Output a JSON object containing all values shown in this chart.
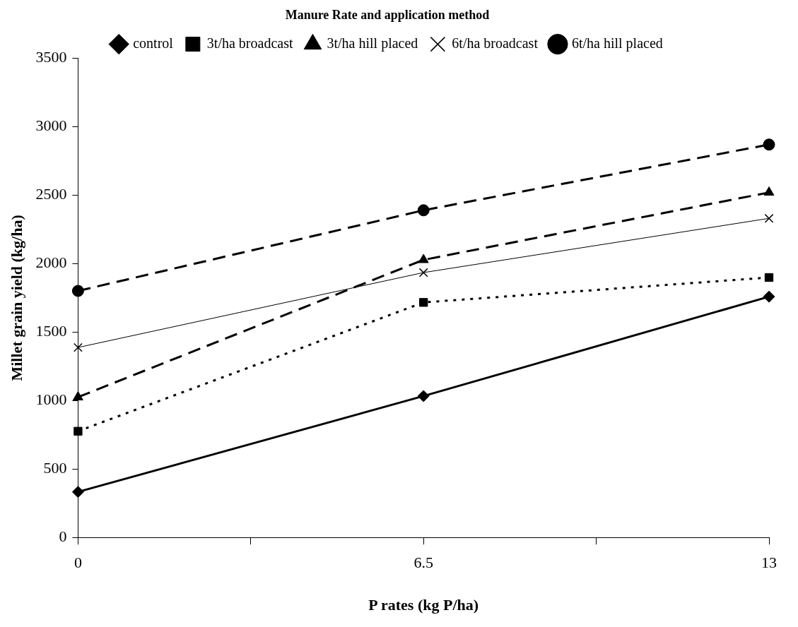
{
  "chart_data": {
    "type": "line",
    "xlabel": "P rates (kg P/ha)",
    "ylabel": "Millet grain yield (kg/ha)",
    "legend_title": "Manure Rate and application method",
    "legend": "top",
    "grid": false,
    "x": [
      0,
      6.5,
      13
    ],
    "xlim": [
      0,
      13
    ],
    "xticks": [
      0,
      {
        "value": 3.25,
        "label": null
      },
      6.5,
      {
        "value": 9.75,
        "label": null
      },
      13
    ],
    "ylim": [
      0,
      3500
    ],
    "yticks": [
      0,
      500,
      1000,
      1500,
      2000,
      2500,
      3000,
      3500
    ],
    "series": [
      {
        "name": "control",
        "color": "#000000",
        "values": [
          333,
          1033,
          1759
        ],
        "marker": "diamond",
        "line_style": "solid"
      },
      {
        "name": "3t/ha broadcast",
        "color": "#000000",
        "values": [
          776,
          1717,
          1899
        ],
        "marker": "square",
        "line_style": "dotted"
      },
      {
        "name": "3t/ha hill placed",
        "color": "#000000",
        "values": [
          1025,
          2028,
          2520
        ],
        "marker": "triangle",
        "line_style": "dashed"
      },
      {
        "name": "6t/ha broadcast",
        "color": "#000000",
        "values": [
          1388,
          1935,
          2331
        ],
        "marker": "cross",
        "line_style": "solid"
      },
      {
        "name": "6t/ha hill placed",
        "color": "#000000",
        "values": [
          1801,
          2390,
          2870
        ],
        "marker": "circle",
        "line_style": "dashed"
      }
    ]
  }
}
